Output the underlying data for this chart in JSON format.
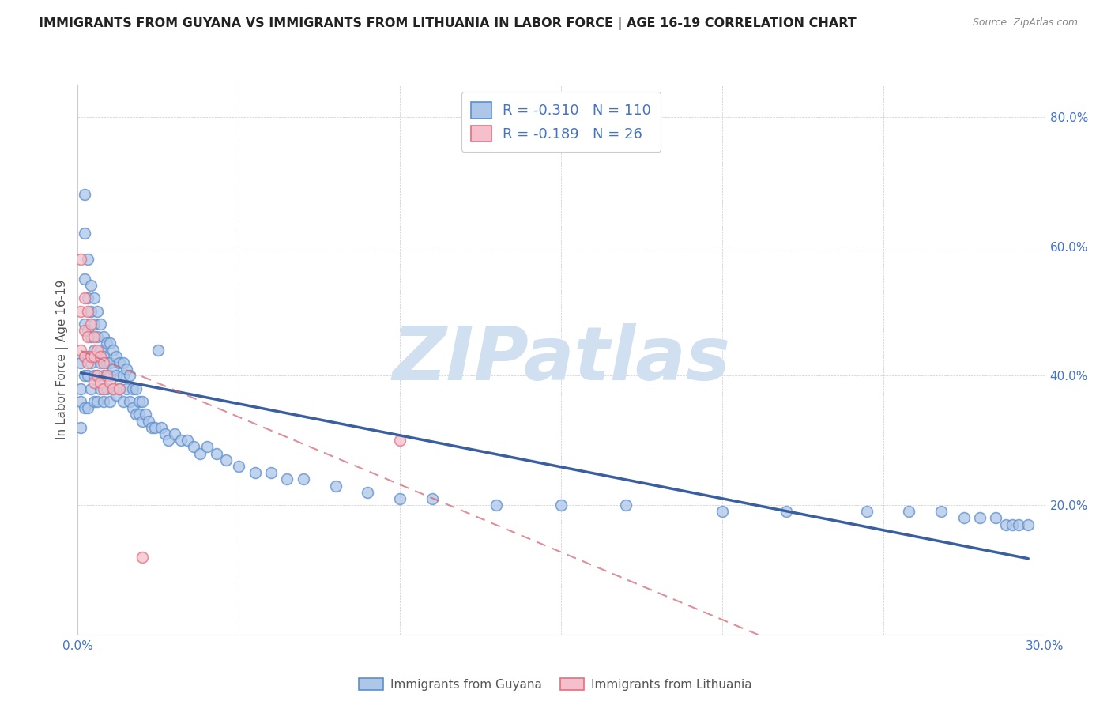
{
  "title": "IMMIGRANTS FROM GUYANA VS IMMIGRANTS FROM LITHUANIA IN LABOR FORCE | AGE 16-19 CORRELATION CHART",
  "source": "Source: ZipAtlas.com",
  "ylabel": "In Labor Force | Age 16-19",
  "xlim": [
    0.0,
    0.3
  ],
  "ylim": [
    0.0,
    0.85
  ],
  "guyana_R": -0.31,
  "guyana_N": 110,
  "lithuania_R": -0.189,
  "lithuania_N": 26,
  "legend_label_guyana": "Immigrants from Guyana",
  "legend_label_lithuania": "Immigrants from Lithuania",
  "color_guyana_fill": "#aec6e8",
  "color_guyana_edge": "#5b8fce",
  "color_guyana_line": "#3a5fa0",
  "color_lithuania_fill": "#f5c0cb",
  "color_lithuania_edge": "#e07080",
  "color_lithuania_line": "#d06070",
  "color_R_label": "#4472c4",
  "watermark_color": "#d0e0f0",
  "guyana_x": [
    0.001,
    0.001,
    0.001,
    0.001,
    0.002,
    0.002,
    0.002,
    0.002,
    0.002,
    0.002,
    0.002,
    0.003,
    0.003,
    0.003,
    0.003,
    0.003,
    0.003,
    0.004,
    0.004,
    0.004,
    0.004,
    0.004,
    0.005,
    0.005,
    0.005,
    0.005,
    0.005,
    0.006,
    0.006,
    0.006,
    0.006,
    0.006,
    0.007,
    0.007,
    0.007,
    0.007,
    0.008,
    0.008,
    0.008,
    0.008,
    0.009,
    0.009,
    0.009,
    0.01,
    0.01,
    0.01,
    0.01,
    0.011,
    0.011,
    0.011,
    0.012,
    0.012,
    0.012,
    0.013,
    0.013,
    0.014,
    0.014,
    0.014,
    0.015,
    0.015,
    0.016,
    0.016,
    0.017,
    0.017,
    0.018,
    0.018,
    0.019,
    0.019,
    0.02,
    0.02,
    0.021,
    0.022,
    0.023,
    0.024,
    0.025,
    0.026,
    0.027,
    0.028,
    0.03,
    0.032,
    0.034,
    0.036,
    0.038,
    0.04,
    0.043,
    0.046,
    0.05,
    0.055,
    0.06,
    0.065,
    0.07,
    0.08,
    0.09,
    0.1,
    0.11,
    0.13,
    0.15,
    0.17,
    0.2,
    0.22,
    0.245,
    0.258,
    0.268,
    0.275,
    0.28,
    0.285,
    0.288,
    0.29,
    0.292,
    0.295
  ],
  "guyana_y": [
    0.42,
    0.38,
    0.36,
    0.32,
    0.68,
    0.62,
    0.55,
    0.48,
    0.43,
    0.4,
    0.35,
    0.58,
    0.52,
    0.47,
    0.43,
    0.4,
    0.35,
    0.54,
    0.5,
    0.46,
    0.42,
    0.38,
    0.52,
    0.48,
    0.44,
    0.4,
    0.36,
    0.5,
    0.46,
    0.43,
    0.4,
    0.36,
    0.48,
    0.44,
    0.42,
    0.38,
    0.46,
    0.43,
    0.4,
    0.36,
    0.45,
    0.42,
    0.38,
    0.45,
    0.42,
    0.4,
    0.36,
    0.44,
    0.41,
    0.38,
    0.43,
    0.4,
    0.37,
    0.42,
    0.38,
    0.42,
    0.4,
    0.36,
    0.41,
    0.38,
    0.4,
    0.36,
    0.38,
    0.35,
    0.38,
    0.34,
    0.36,
    0.34,
    0.36,
    0.33,
    0.34,
    0.33,
    0.32,
    0.32,
    0.44,
    0.32,
    0.31,
    0.3,
    0.31,
    0.3,
    0.3,
    0.29,
    0.28,
    0.29,
    0.28,
    0.27,
    0.26,
    0.25,
    0.25,
    0.24,
    0.24,
    0.23,
    0.22,
    0.21,
    0.21,
    0.2,
    0.2,
    0.2,
    0.19,
    0.19,
    0.19,
    0.19,
    0.19,
    0.18,
    0.18,
    0.18,
    0.17,
    0.17,
    0.17,
    0.17
  ],
  "lithuania_x": [
    0.001,
    0.001,
    0.001,
    0.002,
    0.002,
    0.002,
    0.003,
    0.003,
    0.003,
    0.004,
    0.004,
    0.005,
    0.005,
    0.005,
    0.006,
    0.006,
    0.007,
    0.007,
    0.008,
    0.008,
    0.009,
    0.01,
    0.011,
    0.013,
    0.02,
    0.1
  ],
  "lithuania_y": [
    0.58,
    0.5,
    0.44,
    0.52,
    0.47,
    0.43,
    0.5,
    0.46,
    0.42,
    0.48,
    0.43,
    0.46,
    0.43,
    0.39,
    0.44,
    0.4,
    0.43,
    0.39,
    0.42,
    0.38,
    0.4,
    0.39,
    0.38,
    0.38,
    0.12,
    0.3
  ]
}
